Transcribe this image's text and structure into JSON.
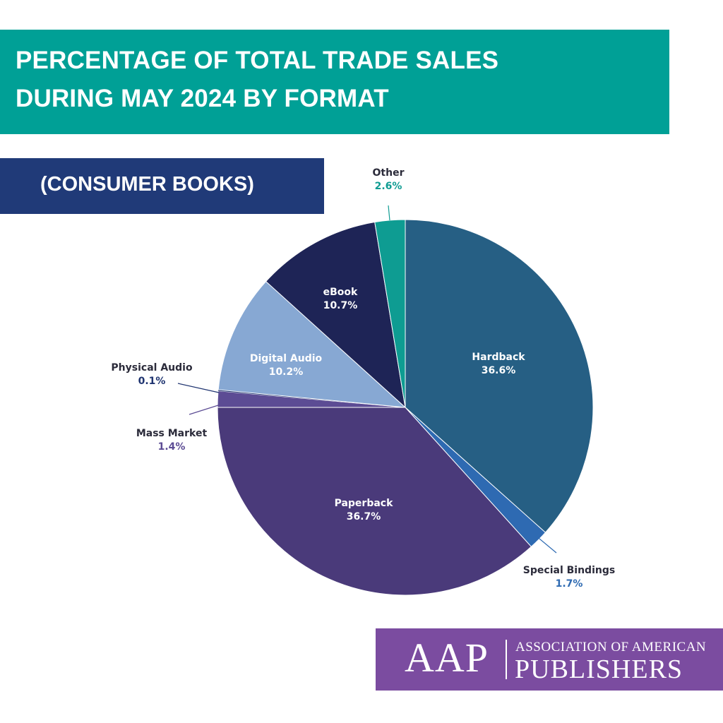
{
  "header": {
    "title_line1": "PERCENTAGE OF TOTAL TRADE SALES",
    "title_line2": "DURING MAY 2024 BY FORMAT",
    "subtitle": "(CONSUMER BOOKS)",
    "title_bg": "#00A096",
    "subtitle_bg": "#203A78"
  },
  "logo": {
    "mark": "AAP",
    "line1": "ASSOCIATION OF AMERICAN",
    "line2": "PUBLISHERS",
    "bg": "#7B4CA0"
  },
  "chart_data": {
    "type": "pie",
    "title": "PERCENTAGE OF TOTAL TRADE SALES DURING MAY 2024 BY FORMAT",
    "subtitle": "(CONSUMER BOOKS)",
    "slices": [
      {
        "label": "Hardback",
        "value": 36.6,
        "value_label": "36.6%",
        "color": "#265F84",
        "label_inside": true,
        "value_color": "#ffffff"
      },
      {
        "label": "Special Bindings",
        "value": 1.7,
        "value_label": "1.7%",
        "color": "#2E6AB2",
        "label_inside": false,
        "value_color": "#2E6AB2"
      },
      {
        "label": "Paperback",
        "value": 36.7,
        "value_label": "36.7%",
        "color": "#4A3A7A",
        "label_inside": true,
        "value_color": "#ffffff"
      },
      {
        "label": "Mass Market",
        "value": 1.4,
        "value_label": "1.4%",
        "color": "#5C4C94",
        "label_inside": false,
        "value_color": "#5C4C94"
      },
      {
        "label": "Physical Audio",
        "value": 0.1,
        "value_label": "0.1%",
        "color": "#1F3470",
        "label_inside": false,
        "value_color": "#1F3470"
      },
      {
        "label": "Digital Audio",
        "value": 10.2,
        "value_label": "10.2%",
        "color": "#87A8D3",
        "label_inside": true,
        "value_color": "#ffffff"
      },
      {
        "label": "eBook",
        "value": 10.7,
        "value_label": "10.7%",
        "color": "#1E2456",
        "label_inside": true,
        "value_color": "#ffffff"
      },
      {
        "label": "Other",
        "value": 2.6,
        "value_label": "2.6%",
        "color": "#0E9C92",
        "label_inside": false,
        "value_color": "#0E9C92"
      }
    ],
    "start_position": "12 o'clock",
    "direction": "clockwise",
    "legend": "none"
  }
}
